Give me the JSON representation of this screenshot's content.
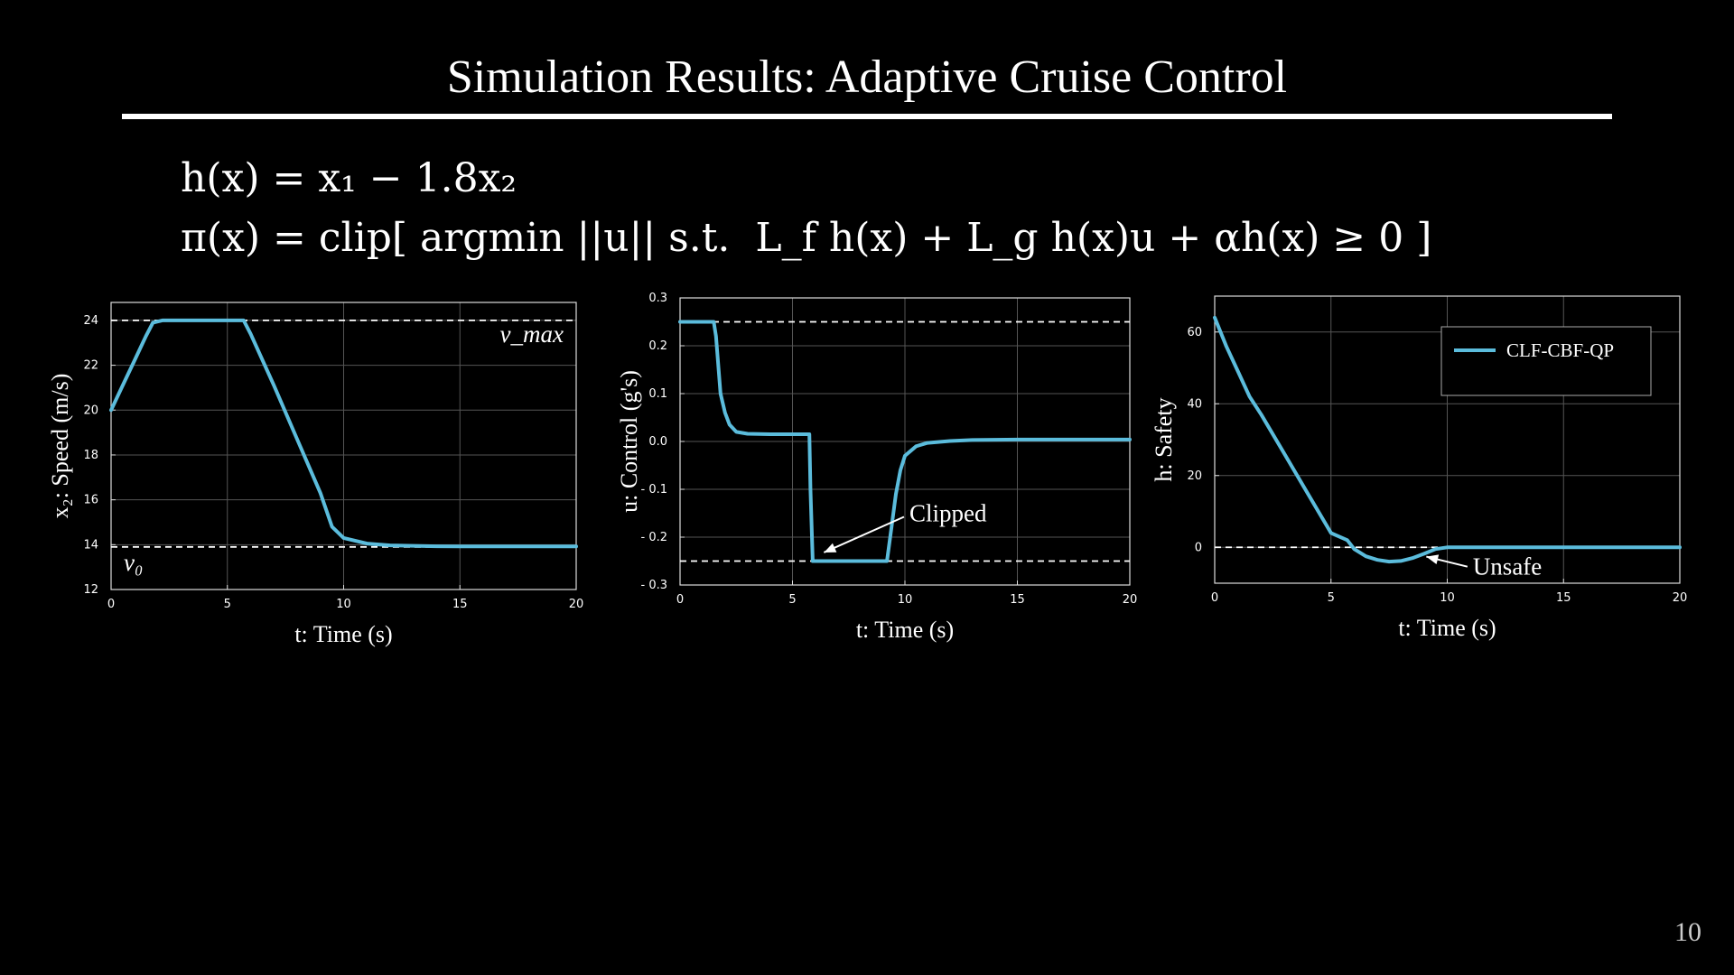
{
  "slide": {
    "title": "Simulation Results: Adaptive Cruise Control",
    "page_number": "10",
    "equations": {
      "line1": "h(x) = x₁ − 1.8x₂",
      "line2": "π(x) = clip[ argmin ||u|| s.t.  L_f h(x) + L_g h(x)u + αh(x) ≥ 0 ]"
    }
  },
  "colors": {
    "series": "#5bbcdc",
    "axis": "#ffffff",
    "grid": "#555555",
    "background": "#000000"
  },
  "chart_data": [
    {
      "type": "line",
      "xlabel": "t: Time (s)",
      "ylabel": "x₂: Speed (m/s)",
      "xlim": [
        0,
        20
      ],
      "ylim": [
        12,
        24.8
      ],
      "xticks": [
        0,
        5,
        10,
        15,
        20
      ],
      "yticks": [
        12,
        14,
        16,
        18,
        20,
        22,
        24
      ],
      "grid": true,
      "reference_lines": [
        {
          "y": 24,
          "label": "v_max",
          "style": "dashed"
        },
        {
          "y": 13.9,
          "label": "v₀",
          "style": "dashed"
        }
      ],
      "series": [
        {
          "x": [
            0,
            0.5,
            1.0,
            1.5,
            1.8,
            2.2,
            3,
            4,
            5,
            5.7,
            6,
            7,
            8,
            9,
            9.5,
            10,
            11,
            12,
            14,
            16,
            18,
            20
          ],
          "y": [
            20,
            21.1,
            22.2,
            23.3,
            23.9,
            24,
            24,
            24,
            24,
            24,
            23.4,
            21.1,
            18.7,
            16.3,
            14.8,
            14.3,
            14.05,
            13.97,
            13.93,
            13.92,
            13.92,
            13.92
          ]
        }
      ]
    },
    {
      "type": "line",
      "xlabel": "t: Time (s)",
      "ylabel": "u: Control (g's)",
      "xlim": [
        0,
        20
      ],
      "ylim": [
        -0.3,
        0.3
      ],
      "xticks": [
        0,
        5,
        10,
        15,
        20
      ],
      "yticks": [
        -0.3,
        -0.2,
        -0.1,
        0.0,
        0.1,
        0.2,
        0.3
      ],
      "ytick_labels": [
        "- 0.3",
        "- 0.2",
        "- 0.1",
        "0.0",
        "0.1",
        "0.2",
        "0.3"
      ],
      "grid": true,
      "reference_lines": [
        {
          "y": 0.25,
          "style": "dashed"
        },
        {
          "y": -0.25,
          "style": "dashed"
        }
      ],
      "annotations": [
        {
          "text": "Clipped",
          "x": 10.2,
          "y": -0.15
        }
      ],
      "series": [
        {
          "x": [
            0,
            1.5,
            1.6,
            1.7,
            1.8,
            2.0,
            2.2,
            2.5,
            3,
            4,
            5,
            5.75,
            5.8,
            5.9,
            6,
            7,
            8,
            9,
            9.2,
            9.4,
            9.6,
            9.8,
            10,
            10.5,
            11,
            12,
            13,
            15,
            18,
            20
          ],
          "y": [
            0.25,
            0.25,
            0.22,
            0.16,
            0.1,
            0.06,
            0.035,
            0.02,
            0.016,
            0.015,
            0.015,
            0.015,
            -0.1,
            -0.25,
            -0.25,
            -0.25,
            -0.25,
            -0.25,
            -0.25,
            -0.18,
            -0.11,
            -0.06,
            -0.03,
            -0.01,
            -0.003,
            0.001,
            0.003,
            0.004,
            0.004,
            0.004
          ]
        }
      ]
    },
    {
      "type": "line",
      "xlabel": "t: Time (s)",
      "ylabel": "h: Safety",
      "xlim": [
        0,
        20
      ],
      "ylim": [
        -10,
        70
      ],
      "xticks": [
        0,
        5,
        10,
        15,
        20
      ],
      "yticks": [
        0,
        20,
        40,
        60
      ],
      "grid": true,
      "legend": {
        "position": "top-right",
        "entries": [
          "CLF-CBF-QP"
        ]
      },
      "reference_lines": [
        {
          "y": 0,
          "style": "dashed"
        }
      ],
      "annotations": [
        {
          "text": "Unsafe",
          "x": 11.1,
          "y": -5.4
        }
      ],
      "series": [
        {
          "name": "CLF-CBF-QP",
          "x": [
            0,
            0.5,
            1,
            1.5,
            2,
            3,
            4,
            5,
            5.7,
            6,
            6.5,
            7,
            7.5,
            8,
            8.5,
            9,
            9.5,
            10,
            11,
            12,
            14,
            16,
            18,
            20
          ],
          "y": [
            64,
            56,
            49,
            42,
            37,
            26,
            15,
            4,
            2,
            -0.5,
            -2.5,
            -3.5,
            -4,
            -3.8,
            -3,
            -1.8,
            -0.5,
            0,
            0,
            0,
            0,
            0,
            0,
            0
          ]
        }
      ]
    }
  ]
}
